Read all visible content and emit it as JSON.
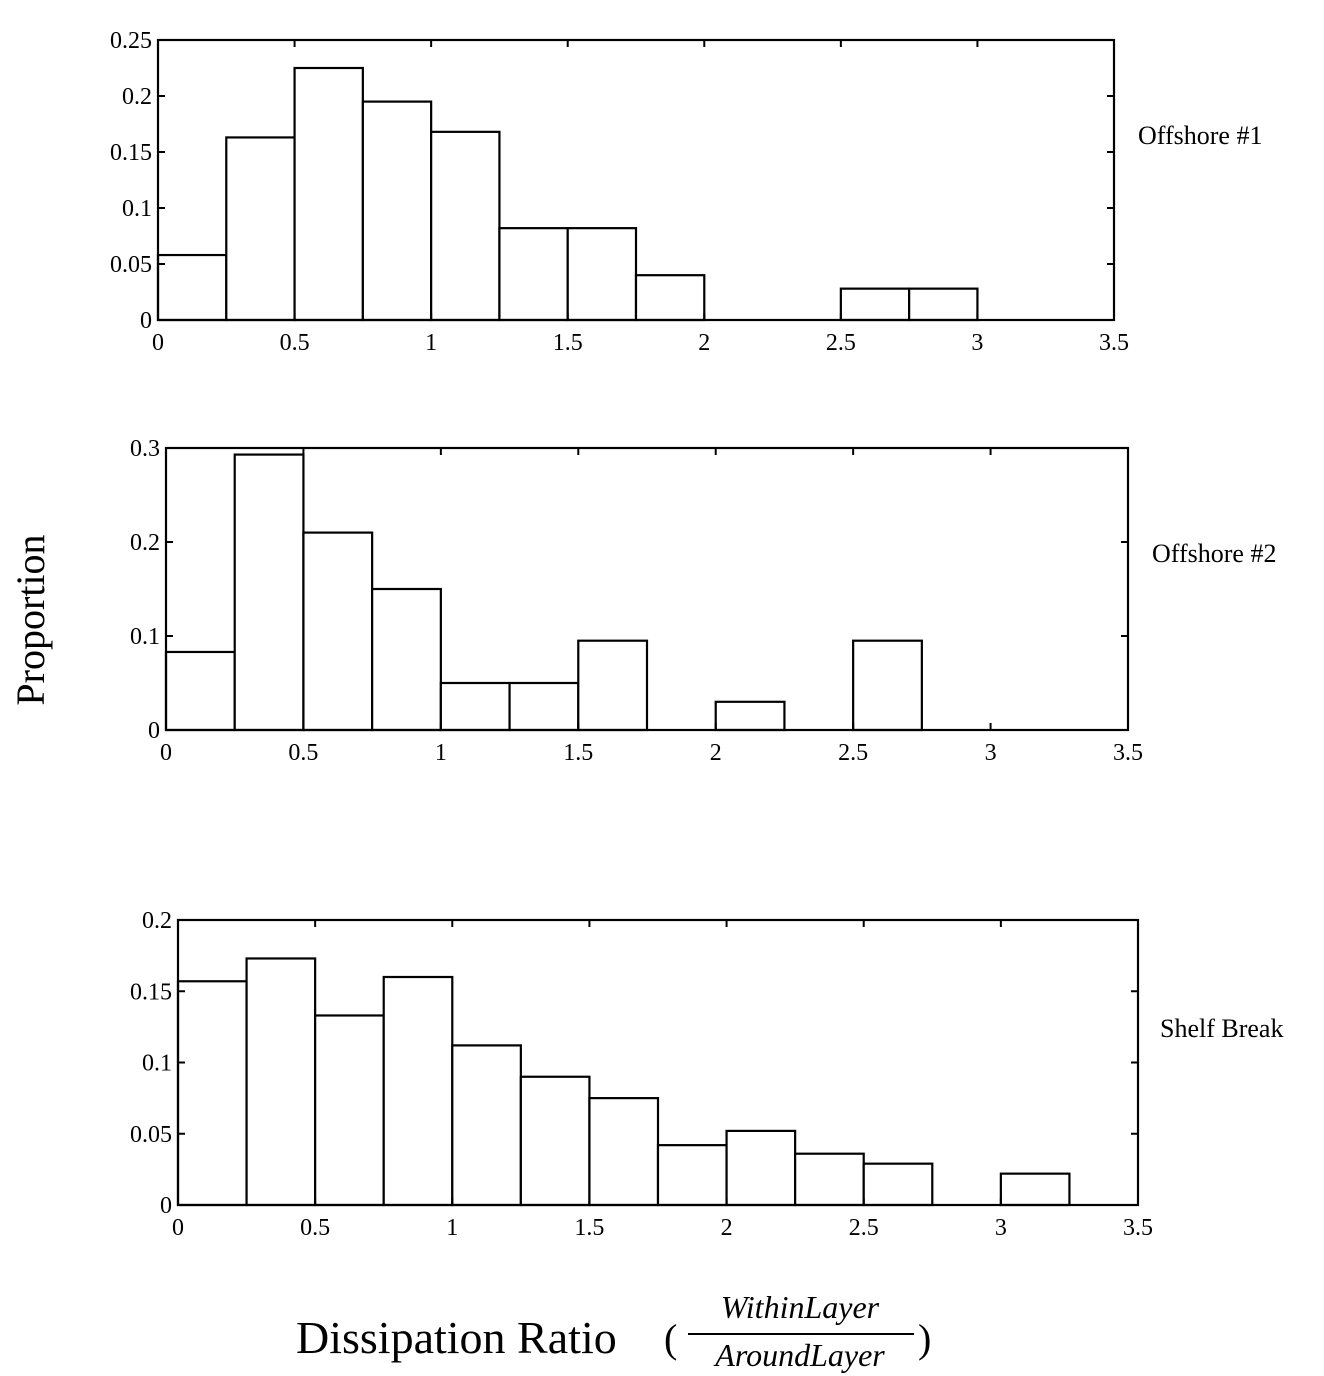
{
  "figure": {
    "ylabel": "Proportion",
    "xlabel_text": "Dissipation Ratio",
    "xlabel_numerator": "WithinLayer",
    "xlabel_denominator": "AroundLayer",
    "open_paren": "(",
    "close_paren": ")"
  },
  "chart_data": [
    {
      "type": "bar",
      "panel_label": "Offshore #1",
      "bin_edges": [
        0,
        0.25,
        0.5,
        0.75,
        1.0,
        1.25,
        1.5,
        1.75,
        2.0,
        2.25,
        2.5,
        2.75,
        3.0,
        3.25
      ],
      "values": [
        0.058,
        0.163,
        0.225,
        0.195,
        0.168,
        0.082,
        0.082,
        0.04,
        0,
        0,
        0.028,
        0.028,
        0,
        0
      ],
      "xlim": [
        0,
        3.5
      ],
      "ylim": [
        0,
        0.25
      ],
      "xticks": [
        "0",
        "0.5",
        "1",
        "1.5",
        "2",
        "2.5",
        "3",
        "3.5"
      ],
      "yticks": [
        "0",
        "0.05",
        "0.1",
        "0.15",
        "0.2",
        "0.25"
      ],
      "grid": false
    },
    {
      "type": "bar",
      "panel_label": "Offshore #2",
      "bin_edges": [
        0,
        0.25,
        0.5,
        0.75,
        1.0,
        1.25,
        1.5,
        1.75,
        2.0,
        2.25,
        2.5,
        2.75,
        3.0,
        3.25
      ],
      "values": [
        0.083,
        0.293,
        0.21,
        0.15,
        0.05,
        0.05,
        0.095,
        0,
        0.03,
        0,
        0.095,
        0,
        0,
        0
      ],
      "xlim": [
        0,
        3.5
      ],
      "ylim": [
        0,
        0.3
      ],
      "xticks": [
        "0",
        "0.5",
        "1",
        "1.5",
        "2",
        "2.5",
        "3",
        "3.5"
      ],
      "yticks": [
        "0",
        "0.1",
        "0.2",
        "0.3"
      ],
      "grid": false
    },
    {
      "type": "bar",
      "panel_label": "Shelf Break",
      "bin_edges": [
        0,
        0.25,
        0.5,
        0.75,
        1.0,
        1.25,
        1.5,
        1.75,
        2.0,
        2.25,
        2.5,
        2.75,
        3.0,
        3.25
      ],
      "values": [
        0.157,
        0.173,
        0.133,
        0.16,
        0.112,
        0.09,
        0.075,
        0.042,
        0.052,
        0.036,
        0.029,
        0,
        0.022,
        0
      ],
      "xlim": [
        0,
        3.5
      ],
      "ylim": [
        0,
        0.2
      ],
      "xticks": [
        "0",
        "0.5",
        "1",
        "1.5",
        "2",
        "2.5",
        "3",
        "3.5"
      ],
      "yticks": [
        "0",
        "0.05",
        "0.1",
        "0.15",
        "0.2"
      ],
      "grid": false
    }
  ]
}
